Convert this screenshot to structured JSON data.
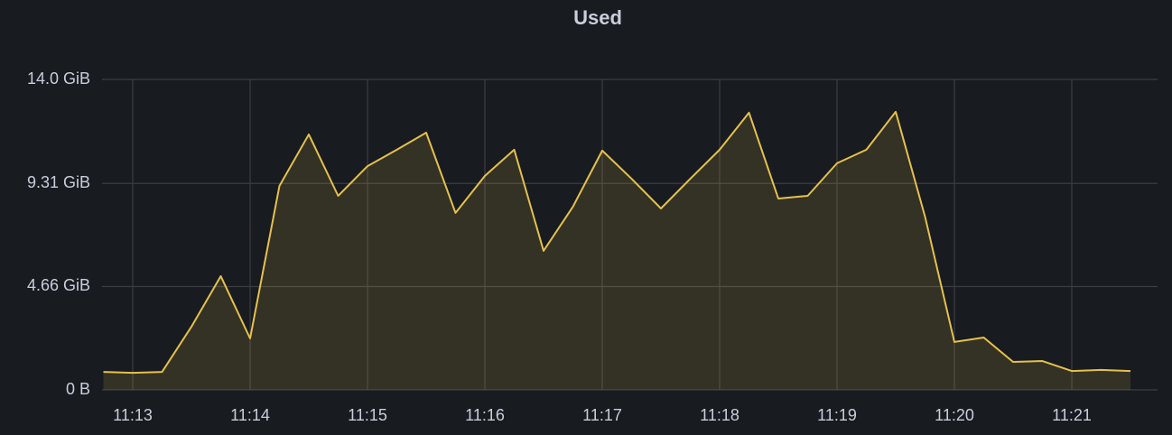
{
  "chart_data": {
    "type": "area",
    "title": "Used",
    "categories": [
      null,
      "11:13",
      null,
      null,
      null,
      "11:14",
      null,
      null,
      null,
      "11:15",
      null,
      null,
      null,
      "11:16",
      null,
      null,
      null,
      "11:17",
      null,
      null,
      null,
      "11:18",
      null,
      null,
      null,
      "11:19",
      null,
      null,
      null,
      "11:20",
      null,
      null,
      null,
      "11:21",
      null,
      null
    ],
    "values": [
      0.81,
      0.77,
      0.81,
      2.85,
      5.13,
      2.32,
      9.2,
      11.52,
      8.75,
      10.09,
      10.83,
      11.6,
      7.98,
      9.65,
      10.83,
      6.27,
      8.26,
      10.79,
      9.52,
      8.18,
      9.52,
      10.83,
      12.5,
      8.63,
      8.75,
      10.22,
      10.83,
      12.54,
      7.81,
      2.16,
      2.36,
      1.26,
      1.3,
      0.85,
      0.9,
      0.85
    ],
    "color": "#e5c14d",
    "ylim": [
      0,
      14
    ],
    "yticks": [
      {
        "value": 0,
        "label": "0 B"
      },
      {
        "value": 4.66,
        "label": "4.66 GiB"
      },
      {
        "value": 9.31,
        "label": "9.31 GiB"
      },
      {
        "value": 14,
        "label": "14.0 GiB"
      }
    ],
    "grid": true
  }
}
